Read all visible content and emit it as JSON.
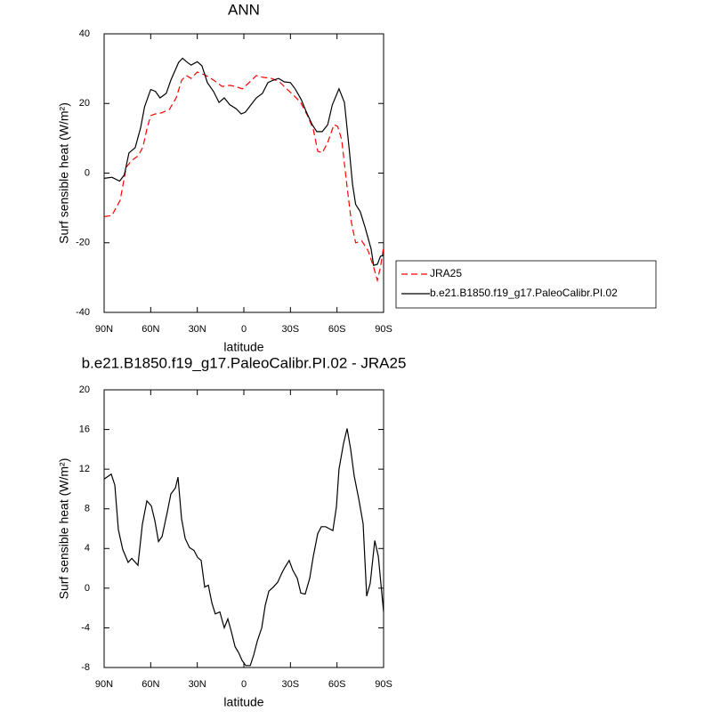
{
  "chart_data": [
    {
      "type": "line",
      "title": "ANN",
      "x_label": "latitude",
      "y_label": "Surf sensible heat (W/m²)",
      "xlim": [
        90,
        -90
      ],
      "xticks": [
        {
          "value": 90,
          "label": "90N"
        },
        {
          "value": 60,
          "label": "60N"
        },
        {
          "value": 30,
          "label": "30N"
        },
        0,
        {
          "value": -30,
          "label": "30S"
        },
        {
          "value": -60,
          "label": "60S"
        },
        {
          "value": -90,
          "label": "90S"
        }
      ],
      "ylim": [
        -40,
        40
      ],
      "yticks": [
        -40,
        -20,
        0,
        20,
        40
      ],
      "legend": "right",
      "series": [
        {
          "name": "JRA25",
          "color": "#ff0000",
          "style": "dashed",
          "x": [
            90,
            85,
            79.7,
            75.7,
            72,
            68,
            65,
            62.5,
            60,
            57,
            53,
            48,
            43.6,
            40,
            37,
            34,
            30,
            25,
            19.5,
            14,
            9,
            5.7,
            1,
            -3.4,
            -8,
            -12.5,
            -17.8,
            -23,
            -27.5,
            -32,
            -36.6,
            -41,
            -44.7,
            -47.6,
            -50.5,
            -54,
            -58,
            -60.4,
            -63,
            -66.5,
            -69.3,
            -72,
            -76,
            -80,
            -83.6,
            -86,
            -88,
            -90
          ],
          "values": [
            -12.5,
            -12.2,
            -7.8,
            1.7,
            3.7,
            5,
            7.5,
            12.6,
            16.5,
            17,
            17.3,
            18.3,
            21.6,
            26.7,
            28,
            27.2,
            29,
            28.2,
            26.7,
            24.9,
            25.2,
            24.9,
            24.2,
            26,
            28,
            27.5,
            27.2,
            26.2,
            24.2,
            22.4,
            20.3,
            16.5,
            12.6,
            6.3,
            5.8,
            8.8,
            13.9,
            13.4,
            9.6,
            -4,
            -14.2,
            -20,
            -19.5,
            -22.3,
            -27,
            -30.8,
            -27,
            -21.3
          ]
        },
        {
          "name": "b.e21.B1850.f19_g17.PaleoCalibr.PI.02",
          "color": "#000000",
          "style": "solid",
          "x": [
            90,
            85,
            80,
            77,
            74,
            70,
            66.5,
            64,
            60,
            57,
            54,
            50,
            47,
            42,
            39.5,
            37,
            34,
            30,
            27,
            23.5,
            19.5,
            16,
            12.6,
            9,
            5,
            1.7,
            -1,
            -4.6,
            -8,
            -12,
            -15.5,
            -19,
            -22.4,
            -26,
            -30,
            -33,
            -37,
            -40,
            -44,
            -47,
            -50.5,
            -54,
            -57,
            -61.3,
            -64.8,
            -68,
            -70,
            -72,
            -75,
            -78,
            -82,
            -83.6,
            -86,
            -88,
            -90
          ],
          "values": [
            -1.5,
            -1.2,
            -2.3,
            -0.5,
            5.8,
            7.3,
            13,
            19,
            24,
            23.5,
            21.6,
            22.9,
            26.7,
            31.8,
            33,
            32,
            31,
            32,
            30.8,
            26,
            23.4,
            20.3,
            21.6,
            19.6,
            18.5,
            17,
            17.5,
            19.6,
            21.6,
            22.9,
            26,
            26.7,
            27.2,
            26.2,
            26,
            24.2,
            21.1,
            17.8,
            13.9,
            11.9,
            11.9,
            13.9,
            19.6,
            24.2,
            20.3,
            6.3,
            -3.2,
            -9,
            -11.1,
            -15.5,
            -21.8,
            -26.5,
            -26.2,
            -23.9,
            -23.6
          ]
        }
      ]
    },
    {
      "type": "line",
      "title": "b.e21.B1850.f19_g17.PaleoCalibr.PI.02 - JRA25",
      "x_label": "latitude",
      "y_label": "Surf sensible heat (W/m²)",
      "xlim": [
        90,
        -90
      ],
      "xticks": [
        {
          "value": 90,
          "label": "90N"
        },
        {
          "value": 60,
          "label": "60N"
        },
        {
          "value": 30,
          "label": "30N"
        },
        0,
        {
          "value": -30,
          "label": "30S"
        },
        {
          "value": -60,
          "label": "60S"
        },
        {
          "value": -90,
          "label": "90S"
        }
      ],
      "ylim": [
        -8,
        20
      ],
      "yticks": [
        -8,
        -4,
        0,
        4,
        8,
        12,
        16,
        20
      ],
      "series": [
        {
          "color": "#000000",
          "style": "solid",
          "x": [
            90,
            85.4,
            83.1,
            80.8,
            78,
            74.5,
            72.2,
            68.2,
            65.4,
            62.5,
            59.6,
            57.3,
            55,
            52.7,
            49.3,
            47,
            44.1,
            42.4,
            40.1,
            37.8,
            35,
            32.1,
            29.8,
            27.5,
            25.2,
            22.9,
            20.6,
            18.4,
            15.5,
            12.6,
            10.3,
            8,
            5.7,
            3.4,
            1.1,
            -1.2,
            -4.1,
            -6.4,
            -8.7,
            -11.5,
            -13.8,
            -16.1,
            -19,
            -21.8,
            -24.7,
            -26.4,
            -29.2,
            -31.5,
            -34.4,
            -36.7,
            -39.5,
            -42.4,
            -44.7,
            -47.6,
            -49.9,
            -52.7,
            -55,
            -57.3,
            -59.6,
            -61.3,
            -64.2,
            -66.5,
            -68.8,
            -71.1,
            -74,
            -76.8,
            -79.1,
            -81.4,
            -84.3,
            -86.6,
            -90
          ],
          "values": [
            11,
            11.5,
            10.4,
            5.9,
            3.9,
            2.6,
            3,
            2.3,
            6.4,
            8.8,
            8.3,
            6.8,
            4.7,
            5.2,
            7.7,
            9.5,
            10.1,
            11.2,
            7,
            5,
            4.1,
            3.8,
            3.1,
            2.8,
            0.1,
            0.3,
            -1.5,
            -2.6,
            -2.4,
            -4,
            -3.1,
            -4.4,
            -5.9,
            -6.5,
            -7.3,
            -7.8,
            -7.8,
            -6.7,
            -5.3,
            -4,
            -1.7,
            -0.3,
            0.1,
            0.6,
            1.6,
            2.1,
            2.8,
            1.8,
            1,
            -0.5,
            -0.6,
            1,
            3.2,
            5.5,
            6.2,
            6.2,
            6,
            5.8,
            8.2,
            12,
            14.6,
            16.1,
            14,
            11.3,
            9,
            6.5,
            -0.8,
            0.5,
            4.8,
            3.2,
            -2.4
          ]
        }
      ]
    }
  ]
}
